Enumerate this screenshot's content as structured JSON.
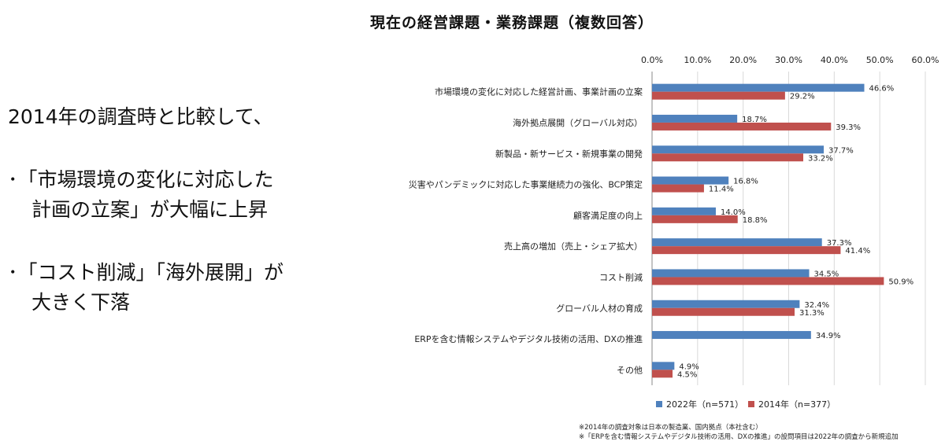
{
  "title": "現在の経営課題・業務課題（複数回答）",
  "summary": {
    "line1": "2014年の調査時と比較して、",
    "bullet1": [
      "･「市場環境の変化に対応した",
      "計画の立案」が大幅に上昇"
    ],
    "bullet2": [
      "･「コスト削減」「海外展開」が",
      "大きく下落"
    ]
  },
  "notes": [
    "※2014年の調査対象は日本の製造業、国内拠点（本社含む）",
    "※「ERPを含む情報システムやデジタル技術の活用、DXの推進」の設問項目は2022年の調査から新規追加"
  ],
  "colors": {
    "series2022": "#4F81BD",
    "series2014": "#C0504D",
    "grid": "#D9D9D9"
  },
  "chart_data": {
    "type": "bar",
    "orientation": "horizontal",
    "xlim": [
      0,
      60
    ],
    "x_ticks": [
      "0.0%",
      "10.0%",
      "20.0%",
      "30.0%",
      "40.0%",
      "50.0%",
      "60.0%"
    ],
    "grid": true,
    "legend_position": "bottom",
    "categories": [
      "市場環境の変化に対応した経営計画、事業計画の立案",
      "海外拠点展開（グローバル対応）",
      "新製品・新サービス・新規事業の開発",
      "災害やパンデミックに対応した事業継続力の強化、BCP策定",
      "顧客満足度の向上",
      "売上高の増加（売上・シェア拡大）",
      "コスト削減",
      "グローバル人材の育成",
      "ERPを含む情報システムやデジタル技術の活用、DXの推進",
      "その他"
    ],
    "series": [
      {
        "name": "2022年（n=571）",
        "values": [
          46.6,
          18.7,
          37.7,
          16.8,
          14.0,
          37.3,
          34.5,
          32.4,
          34.9,
          4.9
        ],
        "labels": [
          "46.6%",
          "18.7%",
          "37.7%",
          "16.8%",
          "14.0%",
          "37.3%",
          "34.5%",
          "32.4%",
          "34.9%",
          "4.9%"
        ]
      },
      {
        "name": "2014年（n=377）",
        "values": [
          29.2,
          39.3,
          33.2,
          11.4,
          18.8,
          41.4,
          50.9,
          31.3,
          null,
          4.5
        ],
        "labels": [
          "29.2%",
          "39.3%",
          "33.2%",
          "11.4%",
          "18.8%",
          "41.4%",
          "50.9%",
          "31.3%",
          "",
          "4.5%"
        ]
      }
    ]
  }
}
